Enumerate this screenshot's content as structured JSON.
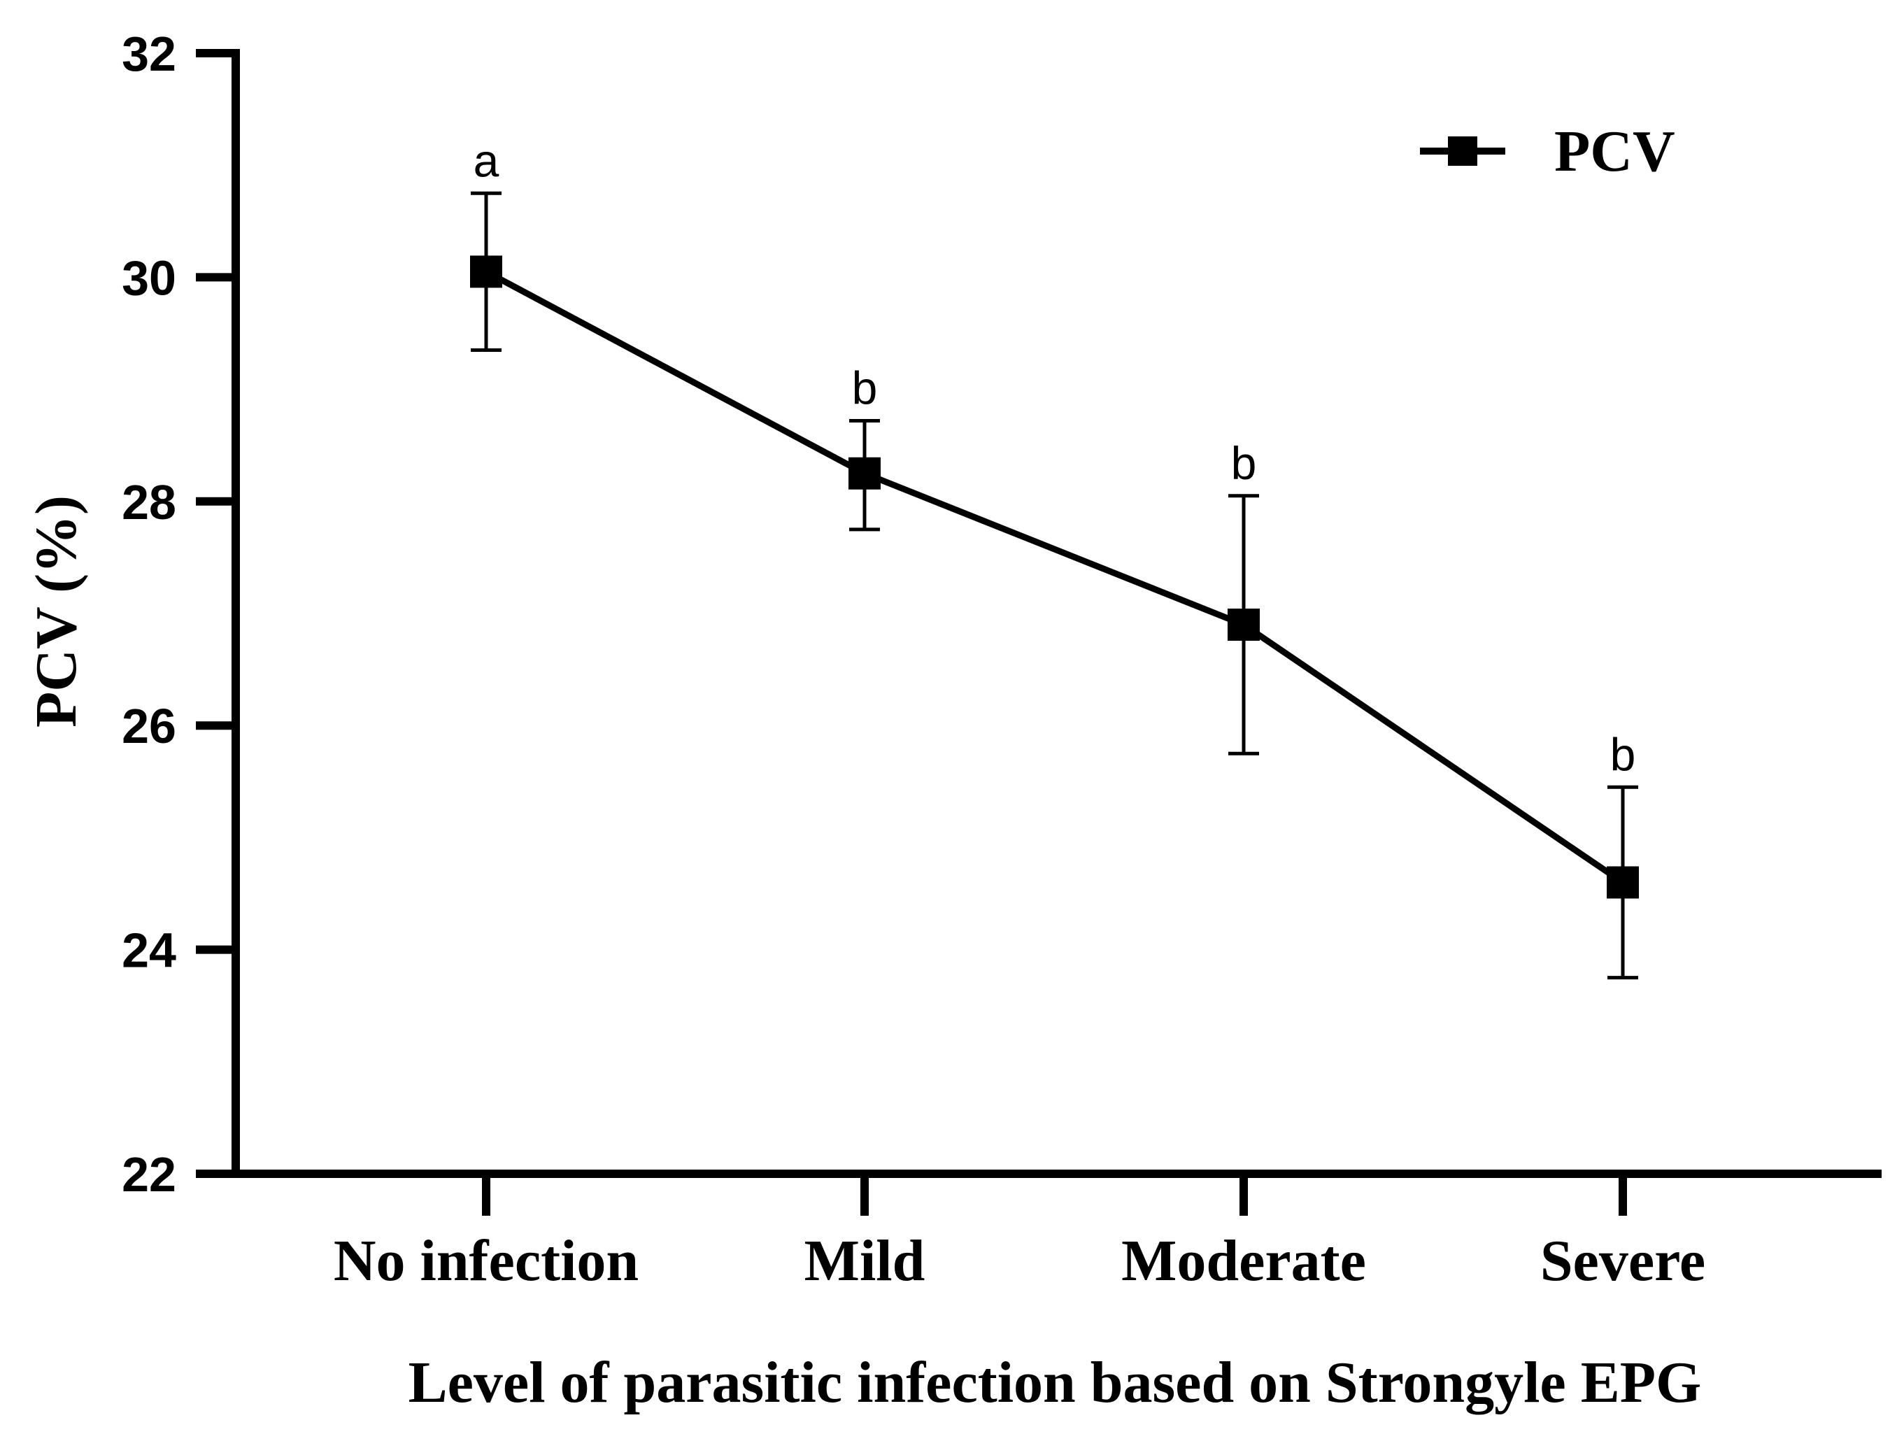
{
  "chart_data": {
    "type": "line",
    "title": "",
    "xlabel": "Level of parasitic infection based on Strongyle EPG",
    "ylabel": "PCV (%)",
    "ylim": [
      22,
      32
    ],
    "yticks": [
      "22",
      "24",
      "26",
      "28",
      "30",
      "32"
    ],
    "grid": false,
    "legend_position": "top-right",
    "categories": [
      "No infection",
      "Mild",
      "Moderate",
      "Severe"
    ],
    "series": [
      {
        "name": "PCV",
        "marker": "square",
        "color": "#000000",
        "values": [
          30.05,
          28.25,
          26.9,
          24.6
        ],
        "error_upper": [
          30.75,
          28.72,
          28.05,
          25.45
        ],
        "error_lower": [
          29.35,
          27.75,
          25.75,
          23.75
        ],
        "significance": [
          "a",
          "b",
          "b",
          "b"
        ]
      }
    ]
  }
}
